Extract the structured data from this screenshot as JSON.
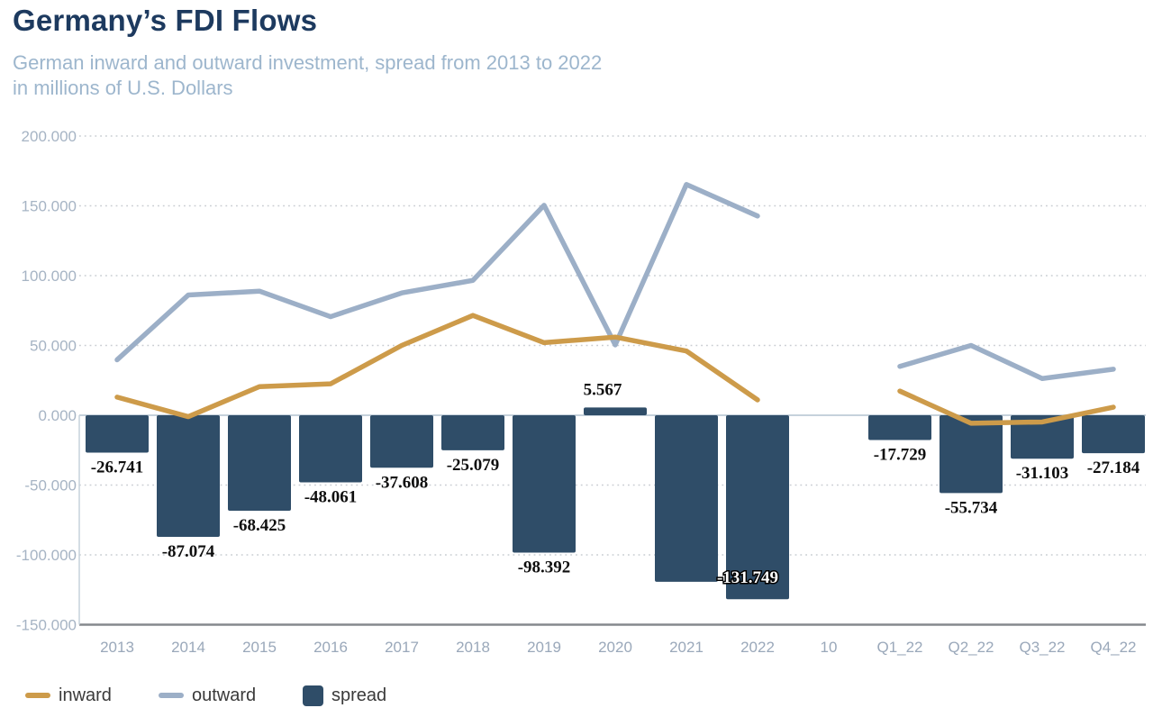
{
  "header": {
    "title": "Germany’s FDI Flows",
    "subtitle_line1": "German inward and outward investment, spread from 2013 to 2022",
    "subtitle_line2": "in millions of U.S. Dollars"
  },
  "legend": {
    "items": [
      {
        "label": "inward",
        "swatch": "line",
        "color": "#cd9b4a"
      },
      {
        "label": "outward",
        "swatch": "line",
        "color": "#9cafc7"
      },
      {
        "label": "spread",
        "swatch": "square",
        "color": "#2f4d68"
      }
    ]
  },
  "chart_data": {
    "type": "combo-bar-line",
    "categories": [
      "2013",
      "2014",
      "2015",
      "2016",
      "2017",
      "2018",
      "2019",
      "2020",
      "2021",
      "2022",
      "10",
      "Q1_22",
      "Q2_22",
      "Q3_22",
      "Q4_22"
    ],
    "y_axis": {
      "tick_labels": [
        "200.000",
        "150.000",
        "100.000",
        "50.000",
        "0.000",
        "-50.000",
        "-100.000",
        "-150.000"
      ],
      "tick_values": [
        200,
        150,
        100,
        50,
        0,
        -50,
        -100,
        -150
      ],
      "range": [
        -150,
        200
      ],
      "grid": "dotted",
      "unit": "thousands of millions USD"
    },
    "bar_series": {
      "name": "spread",
      "color": "#2f4d68",
      "values": [
        -26.741,
        -87.074,
        -68.425,
        -48.061,
        -37.608,
        -25.079,
        -98.392,
        5.567,
        -119.3,
        -131.749,
        null,
        -17.729,
        -55.734,
        -31.103,
        -27.184
      ],
      "labels": [
        "-26.741",
        "-87.074",
        "-68.425",
        "-48.061",
        "-37.608",
        "-25.079",
        "-98.392",
        "5.567",
        null,
        "-131.749",
        null,
        "-17.729",
        "-55.734",
        "-31.103",
        "-27.184"
      ],
      "label_styles": [
        "below",
        "below",
        "below",
        "below",
        "below",
        "below",
        "below",
        "above",
        null,
        "inside",
        null,
        "below",
        "below",
        "below",
        "below"
      ]
    },
    "line_series": [
      {
        "name": "outward",
        "color": "#9cafc7",
        "values": [
          39.7,
          86.1,
          88.9,
          70.6,
          87.6,
          96.6,
          150.4,
          50.4,
          165.3,
          142.7,
          null,
          35,
          50,
          26.3,
          33
        ]
      },
      {
        "name": "inward",
        "color": "#cd9b4a",
        "values": [
          13,
          -1,
          20.5,
          22.5,
          50,
          71.5,
          52,
          56,
          46,
          11,
          null,
          17.3,
          -5.7,
          -4.8,
          5.8
        ]
      }
    ],
    "legend_position": "bottom-left"
  },
  "colors": {
    "title": "#1d3a5f",
    "subtitle": "#9db6cd",
    "bar": "#2f4d68",
    "inward_line": "#cd9b4a",
    "outward_line": "#9cafc7",
    "grid_dotted": "#c9cdd2",
    "zero_line": "#c6d2dc",
    "bottom_axis": "#85898d"
  }
}
